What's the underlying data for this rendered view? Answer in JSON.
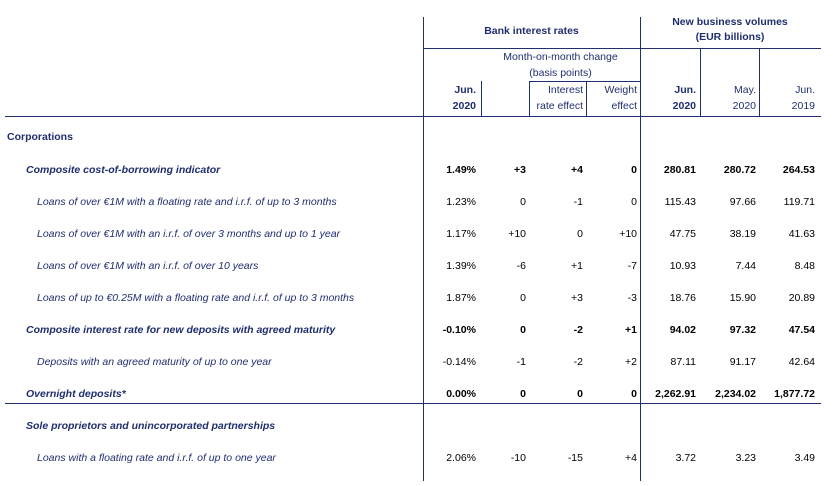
{
  "header": {
    "bank_rates": "Bank interest rates",
    "volumes_line1": "New business volumes",
    "volumes_line2": "(EUR billions)",
    "mom_line1": "Month-on-month change",
    "mom_line2": "(basis points)",
    "rate_col_line1": "Jun.",
    "rate_col_line2": "2020",
    "ire_line1": "Interest",
    "ire_line2": "rate effect",
    "we_line1": "Weight",
    "we_line2": "effect",
    "vol1_line1": "Jun.",
    "vol1_line2": "2020",
    "vol2_line1": "May.",
    "vol2_line2": "2020",
    "vol3_line1": "Jun.",
    "vol3_line2": "2019"
  },
  "sections": {
    "corporations": "Corporations"
  },
  "rows": [
    {
      "label": "Composite cost-of-borrowing indicator",
      "rate": "1.49%",
      "mom": "+3",
      "ire": "+4",
      "we": "0",
      "v1": "280.81",
      "v2": "280.72",
      "v3": "264.53"
    },
    {
      "label": "Loans of over €1M with a floating rate and i.r.f. of up to 3 months",
      "rate": "1.23%",
      "mom": "0",
      "ire": "-1",
      "we": "0",
      "v1": "115.43",
      "v2": "97.66",
      "v3": "119.71"
    },
    {
      "label": "Loans of over €1M with an i.r.f. of over 3 months and up to 1 year",
      "rate": "1.17%",
      "mom": "+10",
      "ire": "0",
      "we": "+10",
      "v1": "47.75",
      "v2": "38.19",
      "v3": "41.63"
    },
    {
      "label": "Loans of over €1M with an i.r.f. of over 10 years",
      "rate": "1.39%",
      "mom": "-6",
      "ire": "+1",
      "we": "-7",
      "v1": "10.93",
      "v2": "7.44",
      "v3": "8.48"
    },
    {
      "label": "Loans of up to €0.25M with a floating rate and i.r.f. of up to 3 months",
      "rate": "1.87%",
      "mom": "0",
      "ire": "+3",
      "we": "-3",
      "v1": "18.76",
      "v2": "15.90",
      "v3": "20.89"
    },
    {
      "label": "Composite interest rate for new deposits with agreed maturity",
      "rate": "-0.10%",
      "mom": "0",
      "ire": "-2",
      "we": "+1",
      "v1": "94.02",
      "v2": "97.32",
      "v3": "47.54"
    },
    {
      "label": "Deposits with an agreed maturity of up to one year",
      "rate": "-0.14%",
      "mom": "-1",
      "ire": "-2",
      "we": "+2",
      "v1": "87.11",
      "v2": "91.17",
      "v3": "42.64"
    },
    {
      "label": "Overnight deposits*",
      "rate": "0.00%",
      "mom": "0",
      "ire": "0",
      "we": "0",
      "v1": "2,262.91",
      "v2": "2,234.02",
      "v3": "1,877.72"
    },
    {
      "label": "Sole proprietors and unincorporated partnerships"
    },
    {
      "label": "Loans with a floating rate and i.r.f. of up to one year",
      "rate": "2.06%",
      "mom": "-10",
      "ire": "-15",
      "we": "+4",
      "v1": "3.72",
      "v2": "3.23",
      "v3": "3.49"
    }
  ]
}
